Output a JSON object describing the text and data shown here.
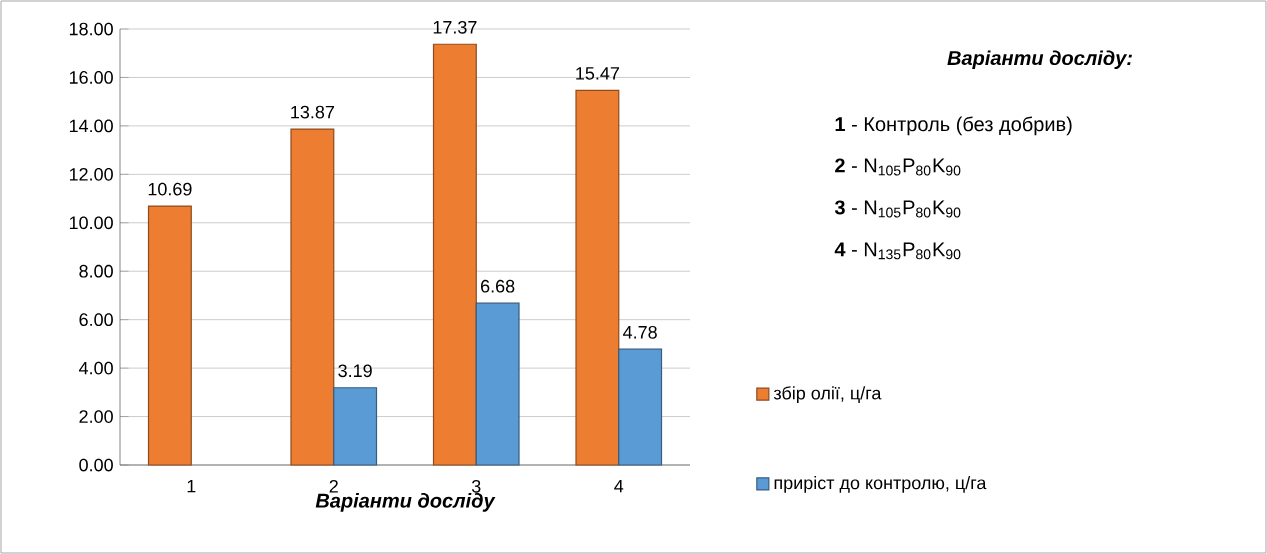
{
  "chart_data": {
    "type": "bar",
    "xlabel": "Варіанти досліду",
    "categories": [
      "1",
      "2",
      "3",
      "4"
    ],
    "series": [
      {
        "name": "збір олії, ц/га",
        "color": "#ed7d31",
        "values": [
          10.69,
          13.87,
          17.37,
          15.47
        ]
      },
      {
        "name": "приріст до контролю, ц/га",
        "color": "#5b9bd5",
        "values": [
          null,
          3.19,
          6.68,
          4.78
        ]
      }
    ],
    "ylim": [
      0,
      18
    ],
    "yticks": [
      {
        "value": 0,
        "label": "0.00"
      },
      {
        "value": 2,
        "label": "2.00"
      },
      {
        "value": 4,
        "label": "4.00"
      },
      {
        "value": 6,
        "label": "6.00"
      },
      {
        "value": 8,
        "label": "8.00"
      },
      {
        "value": 10,
        "label": "10.00"
      },
      {
        "value": 12,
        "label": "12.00"
      },
      {
        "value": 14,
        "label": "14.00"
      },
      {
        "value": 16,
        "label": "16.00"
      },
      {
        "value": 18,
        "label": "18.00"
      }
    ],
    "grid": "y",
    "data_labels": true,
    "legend": "right",
    "annotations": [
      "Варіанти досліду:",
      "**1** - Контроль (без добрив)",
      "**2** - N$_{105}$P$_{80}$K$_{90}$",
      "**3** - N$_{105}$P$_{80}$K$_{90}$",
      "**4** - N$_{135}$P$_{80}$K$_{90}$"
    ]
  }
}
